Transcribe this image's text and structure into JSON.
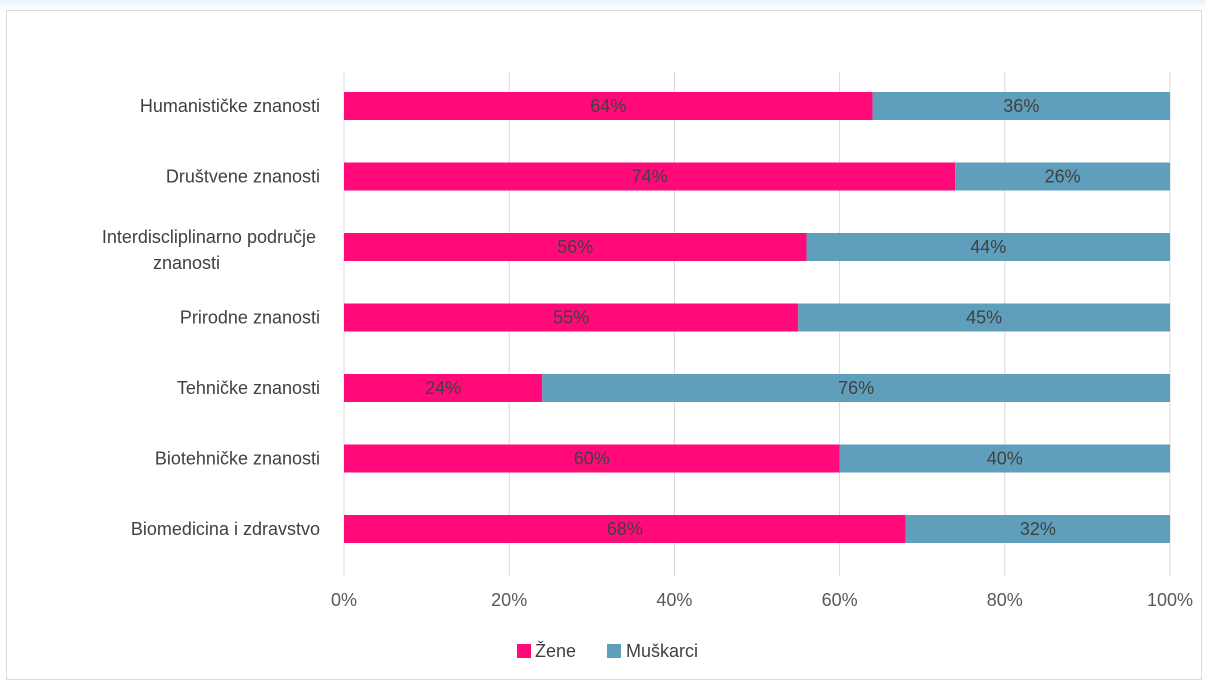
{
  "chart_data": {
    "type": "bar",
    "orientation": "horizontal",
    "stacked": "percent",
    "categories": [
      "Humanističke znanosti",
      "Društvene znanosti",
      "Interdiscliplinarno područje znanosti",
      "Prirodne znanosti",
      "Tehničke znanosti",
      "Biotehničke znanosti",
      "Biomedicina i zdravstvo"
    ],
    "series": [
      {
        "name": "Žene",
        "color": "#ff0a78",
        "values": [
          64,
          74,
          56,
          55,
          24,
          60,
          68
        ],
        "labels": [
          "64%",
          "74%",
          "56%",
          "55%",
          "24%",
          "60%",
          "68%"
        ]
      },
      {
        "name": "Muškarci",
        "color": "#5f9fbc",
        "values": [
          36,
          26,
          44,
          45,
          76,
          40,
          32
        ],
        "labels": [
          "36%",
          "26%",
          "44%",
          "45%",
          "76%",
          "40%",
          "32%"
        ]
      }
    ],
    "x_ticks": [
      "0%",
      "20%",
      "40%",
      "60%",
      "80%",
      "100%"
    ],
    "xlim": [
      0,
      100
    ],
    "title": "",
    "xlabel": "",
    "ylabel": "",
    "grid": true,
    "legend_position": "bottom"
  }
}
